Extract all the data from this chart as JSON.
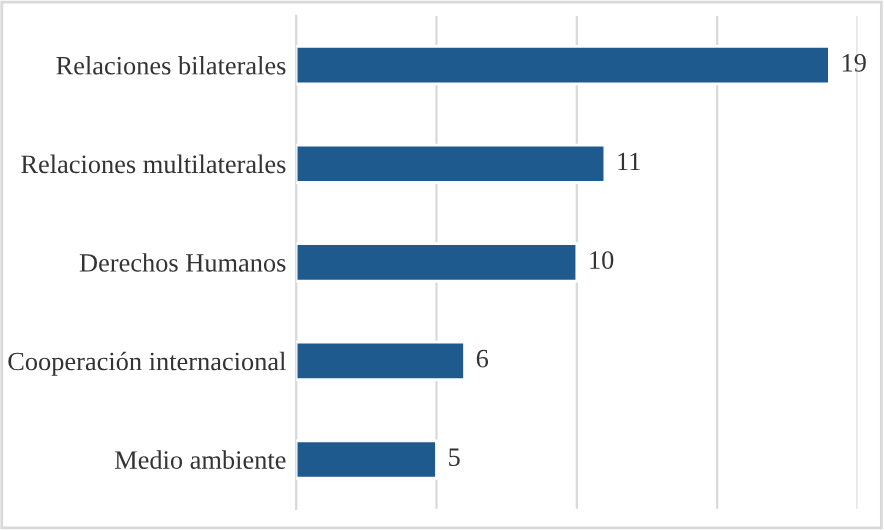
{
  "chart_data": {
    "type": "bar",
    "orientation": "horizontal",
    "categories": [
      "Relaciones bilaterales",
      "Relaciones multilaterales",
      "Derechos Humanos",
      "Cooperación internacional",
      "Medio ambiente"
    ],
    "values": [
      19,
      11,
      10,
      6,
      5
    ],
    "color": "#1f5a8e",
    "xlim": [
      0,
      20
    ],
    "xticks": [
      {
        "value": 0,
        "label": null
      },
      {
        "value": 5,
        "label": null
      },
      {
        "value": 10,
        "label": null
      },
      {
        "value": 15,
        "label": null
      },
      {
        "value": 20,
        "label": null
      }
    ],
    "grid": "x",
    "tick_labels": "y",
    "data_labels": true
  }
}
